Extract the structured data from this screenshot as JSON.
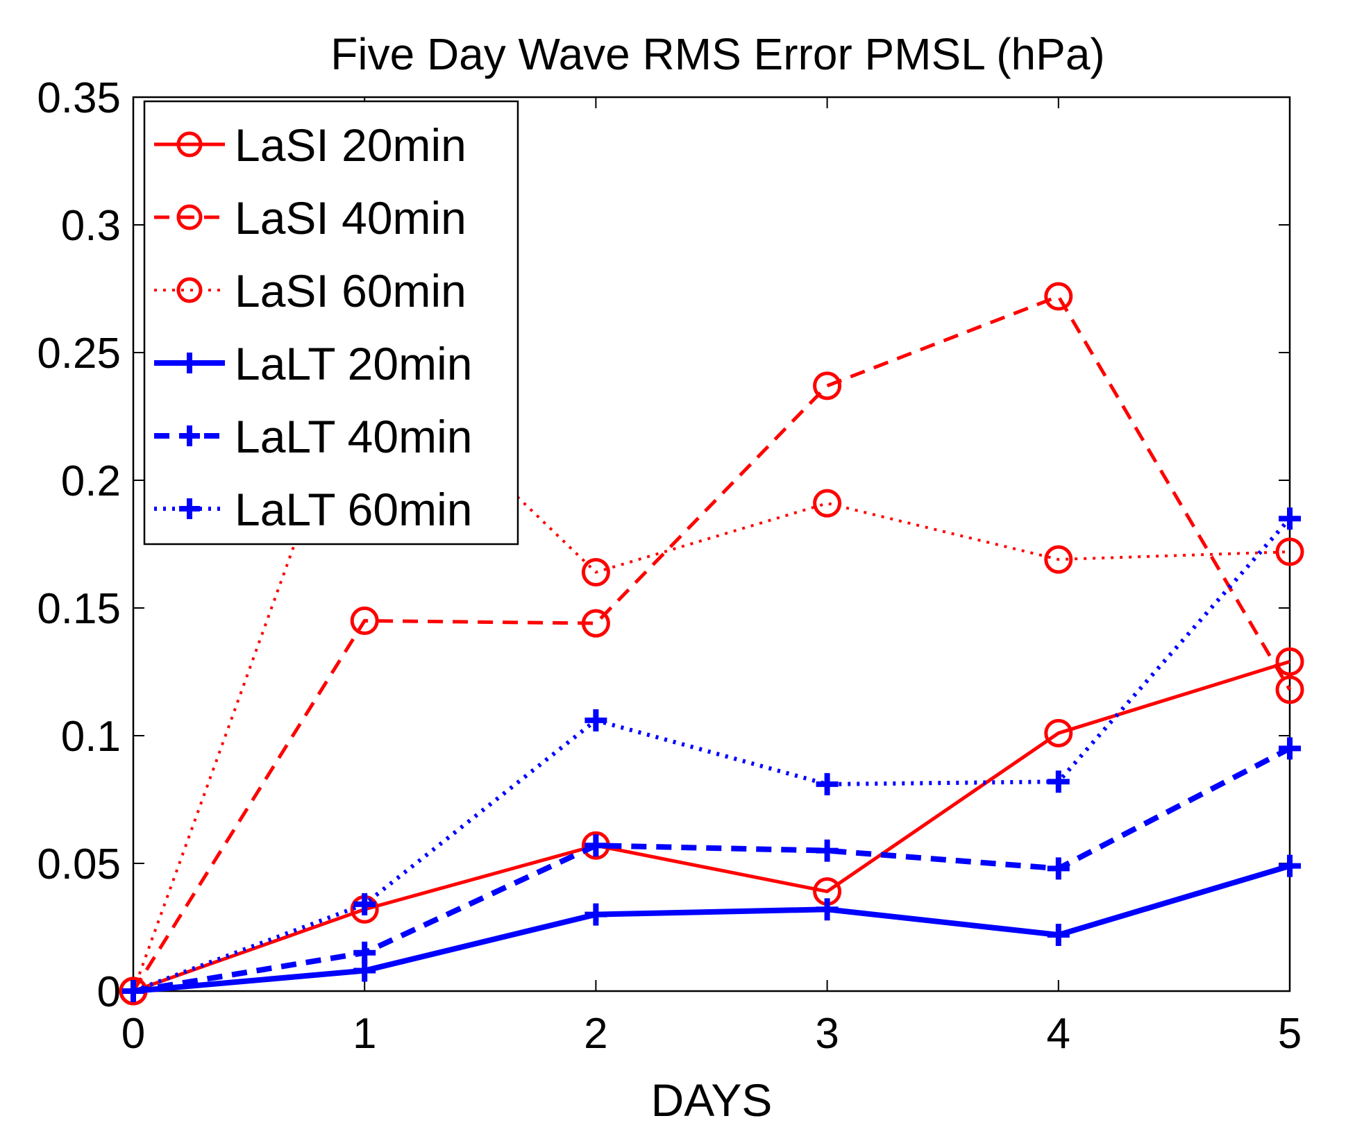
{
  "chart_data": {
    "type": "line",
    "title": "Five Day Wave RMS Error PMSL (hPa)",
    "xlabel": "DAYS",
    "ylabel": "",
    "xlim": [
      0,
      5
    ],
    "ylim": [
      0,
      0.35
    ],
    "x_ticks": [
      "0",
      "1",
      "2",
      "3",
      "4",
      "5"
    ],
    "y_ticks": [
      "0",
      "0.05",
      "0.1",
      "0.15",
      "0.2",
      "0.25",
      "0.3",
      "0.35"
    ],
    "grid": false,
    "legend_position": "top-left",
    "x": [
      0,
      1,
      2,
      3,
      4,
      5
    ],
    "series": [
      {
        "name": "LaSI 20min",
        "values": [
          0,
          0.032,
          0.057,
          0.039,
          0.101,
          0.129
        ],
        "color": "#ff0000",
        "line_style": "solid",
        "marker": "circle"
      },
      {
        "name": "LaSI 40min",
        "values": [
          0,
          0.145,
          0.144,
          0.237,
          0.272,
          0.118
        ],
        "color": "#ff0000",
        "line_style": "dashed",
        "marker": "circle"
      },
      {
        "name": "LaSI 60min",
        "values": [
          0,
          0.251,
          0.164,
          0.191,
          0.169,
          0.172
        ],
        "color": "#ff0000",
        "line_style": "dotted",
        "marker": "circle"
      },
      {
        "name": "LaLT 20min",
        "values": [
          0,
          0.008,
          0.03,
          0.032,
          0.022,
          0.049
        ],
        "color": "#0000ff",
        "line_style": "solid",
        "marker": "plus"
      },
      {
        "name": "LaLT 40min",
        "values": [
          0,
          0.015,
          0.057,
          0.055,
          0.048,
          0.095
        ],
        "color": "#0000ff",
        "line_style": "dashed",
        "marker": "plus"
      },
      {
        "name": "LaLT 60min",
        "values": [
          0,
          0.034,
          0.106,
          0.081,
          0.082,
          0.185
        ],
        "color": "#0000ff",
        "line_style": "dotted",
        "marker": "plus"
      }
    ]
  }
}
